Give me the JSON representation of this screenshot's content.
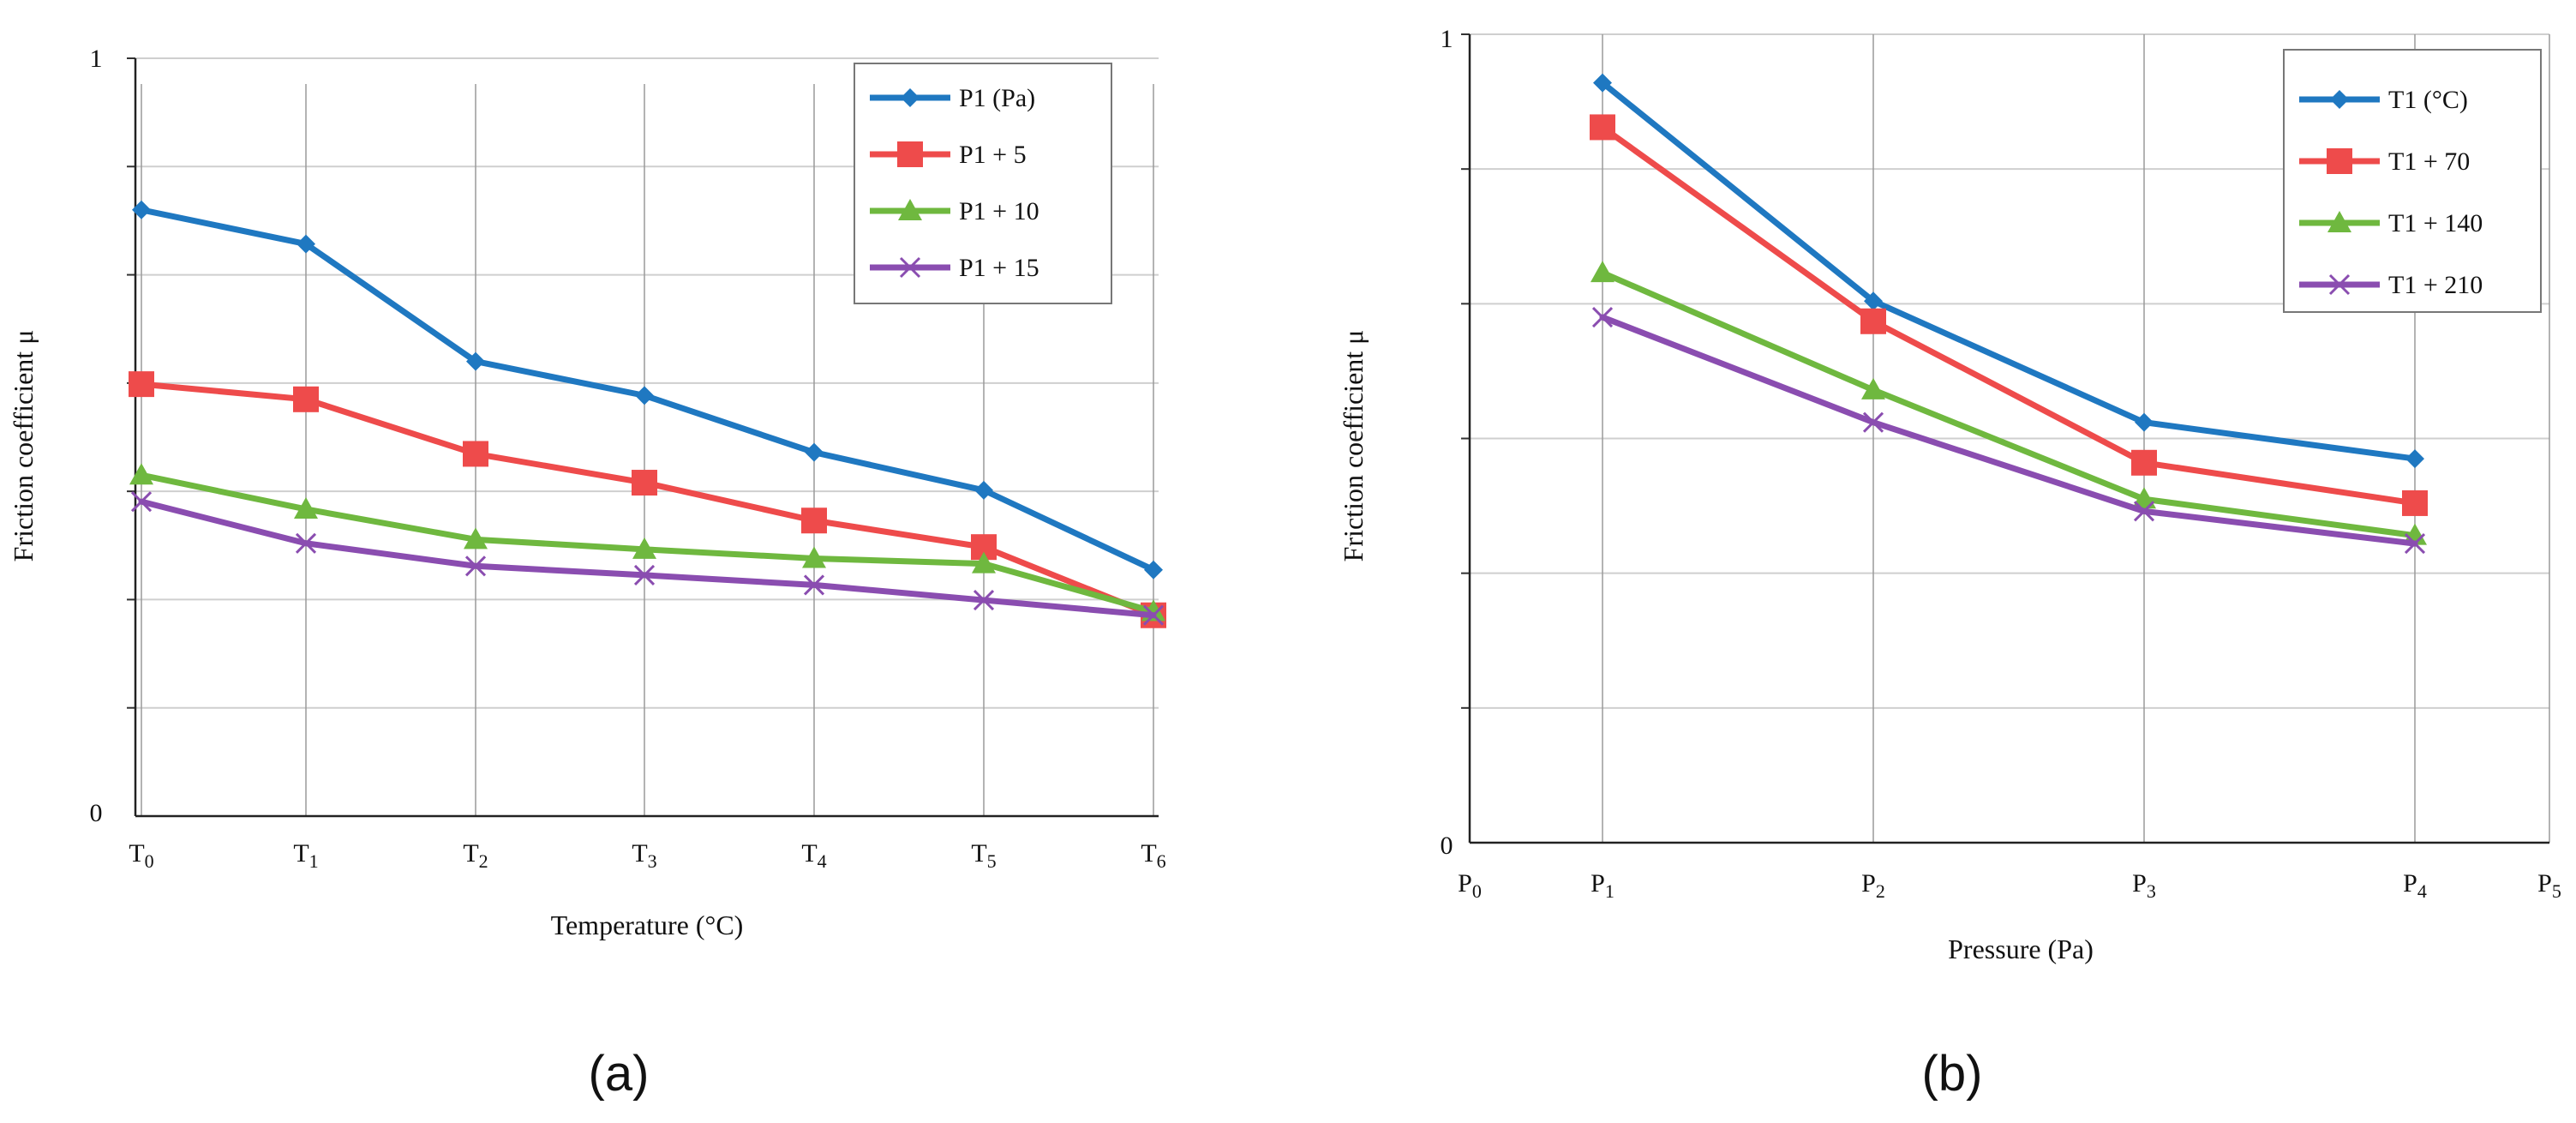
{
  "chart_data": [
    {
      "type": "line",
      "caption": "(a)",
      "xlabel": "Temperature (°C)",
      "ylabel": "Friction coefficient μ",
      "ylim": [
        0,
        1
      ],
      "ytick_labels": [
        "0",
        "1"
      ],
      "categories": [
        {
          "base": "T",
          "sub": "0"
        },
        {
          "base": "T",
          "sub": "1"
        },
        {
          "base": "T",
          "sub": "2"
        },
        {
          "base": "T",
          "sub": "3"
        },
        {
          "base": "T",
          "sub": "4"
        },
        {
          "base": "T",
          "sub": "5"
        },
        {
          "base": "T",
          "sub": "6"
        }
      ],
      "grid": true,
      "legend_position": "top-right",
      "series": [
        {
          "name": "P1 (Pa)",
          "color": "#1f78c1",
          "marker": "diamond",
          "values": [
            0.8,
            0.755,
            0.6,
            0.555,
            0.48,
            0.43,
            0.325
          ]
        },
        {
          "name": "P1 + 5",
          "color": "#ee4b4b",
          "marker": "square",
          "values": [
            0.57,
            0.55,
            0.478,
            0.44,
            0.39,
            0.355,
            0.265
          ]
        },
        {
          "name": "P1 + 10",
          "color": "#6fb83f",
          "marker": "triangle",
          "values": [
            0.45,
            0.405,
            0.365,
            0.352,
            0.34,
            0.333,
            0.27
          ]
        },
        {
          "name": "P1 + 15",
          "color": "#8a4db0",
          "marker": "x",
          "values": [
            0.415,
            0.36,
            0.33,
            0.318,
            0.305,
            0.285,
            0.265
          ]
        }
      ]
    },
    {
      "type": "line",
      "caption": "(b)",
      "xlabel": "Pressure (Pa)",
      "ylabel": "Friction coefficient μ",
      "ylim": [
        0,
        1
      ],
      "ytick_labels": [
        "0",
        "1"
      ],
      "categories": [
        {
          "base": "P",
          "sub": "0"
        },
        {
          "base": "P",
          "sub": "1"
        },
        {
          "base": "P",
          "sub": "2"
        },
        {
          "base": "P",
          "sub": "3"
        },
        {
          "base": "P",
          "sub": "4"
        },
        {
          "base": "P",
          "sub": "5"
        }
      ],
      "grid": true,
      "legend_position": "top-right",
      "series": [
        {
          "name": "T1 (°C)",
          "color": "#1f78c1",
          "marker": "diamond",
          "values": [
            null,
            0.94,
            0.67,
            0.52,
            0.475,
            null
          ]
        },
        {
          "name": "T1 + 70",
          "color": "#ee4b4b",
          "marker": "square",
          "values": [
            null,
            0.885,
            0.645,
            0.47,
            0.42,
            null
          ]
        },
        {
          "name": "T1 + 140",
          "color": "#6fb83f",
          "marker": "triangle",
          "values": [
            null,
            0.705,
            0.56,
            0.425,
            0.38,
            null
          ]
        },
        {
          "name": "T1 + 210",
          "color": "#8a4db0",
          "marker": "x",
          "values": [
            null,
            0.65,
            0.52,
            0.41,
            0.37,
            null
          ]
        }
      ]
    }
  ]
}
